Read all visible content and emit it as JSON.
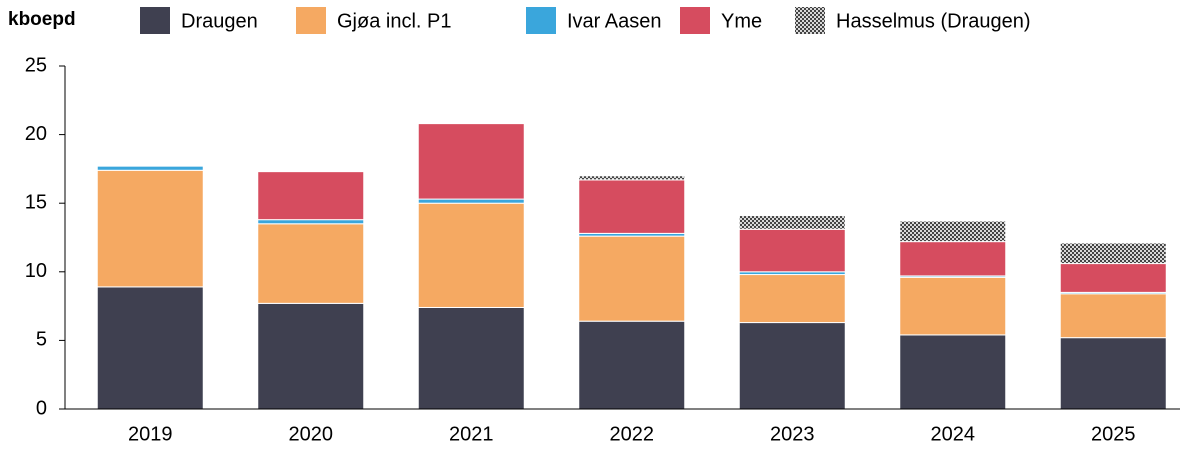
{
  "chart_data": {
    "type": "stacked_bar",
    "y_label": "kboepd",
    "categories": [
      "2019",
      "2020",
      "2021",
      "2022",
      "2023",
      "2024",
      "2025"
    ],
    "series": [
      {
        "name": "Draugen",
        "color": "#3f4050",
        "values": [
          8.9,
          7.7,
          7.4,
          6.4,
          6.3,
          5.4,
          5.2
        ]
      },
      {
        "name": "Gjøa incl. P1",
        "color": "#f5a962",
        "values": [
          8.5,
          5.8,
          7.6,
          6.2,
          3.5,
          4.2,
          3.2
        ]
      },
      {
        "name": "Ivar Aasen",
        "color": "#3aa6dc",
        "values": [
          0.3,
          0.3,
          0.3,
          0.2,
          0.2,
          0.1,
          0.1
        ]
      },
      {
        "name": "Yme",
        "color": "#d64c5f",
        "values": [
          0,
          3.5,
          5.5,
          3.9,
          3.1,
          2.5,
          2.1
        ]
      },
      {
        "name": "Hasselmus (Draugen)",
        "color": "#7a7a7a",
        "pattern": "checker",
        "values": [
          0,
          0,
          0,
          0.3,
          1.0,
          1.5,
          1.5
        ]
      }
    ],
    "ylim": [
      0,
      25
    ],
    "yticks": [
      0,
      5,
      10,
      15,
      20,
      25
    ],
    "legend": "top"
  }
}
